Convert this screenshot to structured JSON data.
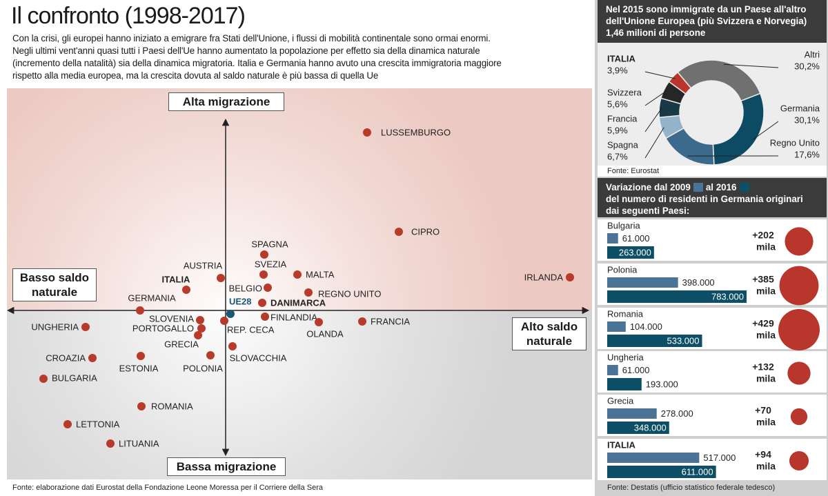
{
  "title": "Il confronto (1998-2017)",
  "intro": [
    "Con la crisi, gli europei hanno iniziato a emigrare fra Stati dell'Unione, i flussi di mobilità continentale sono ormai enormi.",
    "Negli ultimi vent'anni quasi tutti i Paesi dell'Ue hanno aumentato la popolazione per effetto sia della dinamica naturale",
    "(incremento della natalità) sia della dinamica migratoria. Italia e Germania hanno avuto una crescita immigratoria maggiore",
    "rispetto alla media europea, ma la crescita dovuta al saldo naturale è più bassa di quella Ue"
  ],
  "source": "Fonte: elaborazione dati Eurostat della Fondazione Leone Moressa per il Corriere della Sera",
  "chart_data": [
    {
      "type": "scatter",
      "axis_labels": {
        "top": "Alta migrazione",
        "bottom": "Bassa migrazione",
        "left": "Basso saldo naturale",
        "right": "Alto saldo naturale"
      },
      "categories": [
        "LUSSEMBURGO",
        "CIPRO",
        "IRLANDA",
        "SPAGNA",
        "SVEZIA",
        "MALTA",
        "AUSTRIA",
        "BELGIO",
        "REGNO UNITO",
        "ITALIA",
        "DANIMARCA",
        "UE28",
        "GERMANIA",
        "FINLANDIA",
        "OLANDA",
        "FRANCIA",
        "REP. CECA",
        "SLOVENIA",
        "PORTOGALLO",
        "GRECIA",
        "UNGHERIA",
        "SLOVACCHIA",
        "POLONIA",
        "ESTONIA",
        "CROAZIA",
        "BULGARIA",
        "ROMANIA",
        "LETTONIA",
        "LITUANIA"
      ],
      "x": [
        4.1,
        5.02,
        9.98,
        1.12,
        1.1,
        2.08,
        -0.14,
        1.22,
        2.4,
        -1.14,
        1.06,
        0.14,
        -2.48,
        1.14,
        2.7,
        3.96,
        -0.04,
        -0.74,
        -0.7,
        -0.8,
        -4.06,
        0.2,
        -0.44,
        -2.46,
        -3.86,
        -5.28,
        -2.44,
        -4.58,
        -3.34
      ],
      "values": [
        5.16,
        2.28,
        0.96,
        1.62,
        1.04,
        1.04,
        0.94,
        0.66,
        0.52,
        0.6,
        0.22,
        -0.1,
        0,
        -0.18,
        -0.34,
        -0.32,
        -0.3,
        -0.28,
        -0.52,
        -0.72,
        -0.48,
        -1.04,
        -1.3,
        -1.32,
        -1.38,
        -1.98,
        -2.78,
        -3.3,
        -3.86
      ],
      "colors": [
        "#b83a2b",
        "#b83a2b",
        "#b83a2b",
        "#b83a2b",
        "#b83a2b",
        "#b83a2b",
        "#b83a2b",
        "#b83a2b",
        "#b83a2b",
        "#b83a2b",
        "#b83a2b",
        "#1b5878",
        "#b83a2b",
        "#b83a2b",
        "#b83a2b",
        "#b83a2b",
        "#b83a2b",
        "#b83a2b",
        "#b83a2b",
        "#b83a2b",
        "#b83a2b",
        "#b83a2b",
        "#b83a2b",
        "#b83a2b",
        "#b83a2b",
        "#b83a2b",
        "#b83a2b",
        "#b83a2b",
        "#b83a2b"
      ],
      "xlim": [
        -6.34,
        10.62
      ],
      "ylim": [
        -4.9,
        6.44
      ]
    },
    {
      "type": "pie",
      "title": "Nel 2015 sono immigrate da un Paese all'altro dell'Unione Europea (più Svizzera e Norvegia) 1,46 milioni di persone",
      "categories": [
        "Altri",
        "Germania",
        "Regno Unito",
        "Spagna",
        "Francia",
        "Svizzera",
        "ITALIA"
      ],
      "values": [
        30.2,
        30.1,
        17.6,
        6.7,
        5.9,
        5.6,
        3.9
      ],
      "value_labels": [
        "30,2%",
        "30,1%",
        "17,6%",
        "6,7%",
        "5,9%",
        "5,6%",
        "3,9%"
      ],
      "colors": [
        "#707070",
        "#0d4a63",
        "#3c6a8c",
        "#93b3cb",
        "#183945",
        "#262626",
        "#b8362b"
      ],
      "source": "Fonte: Eurostat"
    },
    {
      "type": "bar",
      "title_parts": [
        "Variazione dal 2009",
        "al 2016",
        "del numero di residenti in Germania originari dai seguenti Paesi:"
      ],
      "categories": [
        "Bulgaria",
        "Polonia",
        "Romania",
        "Ungheria",
        "Grecia",
        "ITALIA"
      ],
      "series": [
        {
          "color": "#4a7395",
          "values": [
            61000,
            398000,
            104000,
            61000,
            278000,
            517000
          ],
          "value_labels": [
            "61.000",
            "398.000",
            "104.000",
            "61.000",
            "278.000",
            "517.000"
          ]
        },
        {
          "color": "#0d4f66",
          "values": [
            263000,
            783000,
            533000,
            193000,
            348000,
            611000
          ],
          "value_labels": [
            "263.000",
            "783.000",
            "533.000",
            "193.000",
            "348.000",
            "611.000"
          ]
        }
      ],
      "xlim": [
        0,
        800000
      ],
      "differences": {
        "values": [
          202,
          385,
          429,
          132,
          70,
          94
        ],
        "value_labels": [
          "+202",
          "+385",
          "+429",
          "+132",
          "+70",
          "+94"
        ],
        "unit": "mila",
        "color": "#b8362b"
      },
      "source": "Fonte: Destatis (ufficio statistico federale tedesco)"
    }
  ]
}
